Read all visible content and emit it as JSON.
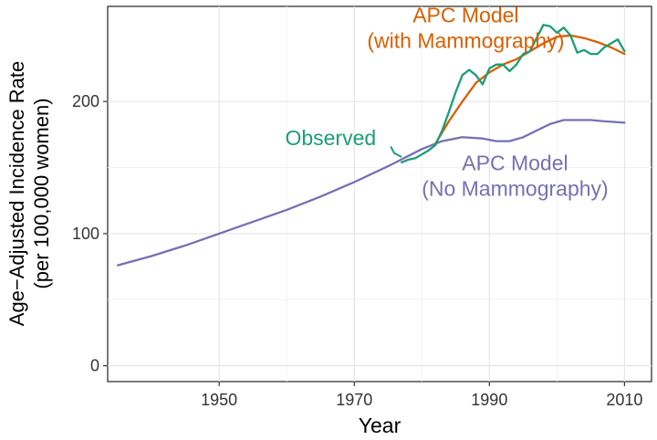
{
  "chart_data": {
    "type": "line",
    "title": "",
    "xlabel": "Year",
    "ylabel": [
      "Age−Adjusted Incidence Rate",
      "(per 100,000 women)"
    ],
    "xlim": [
      1933.5,
      2014
    ],
    "ylim": [
      -12,
      272
    ],
    "x_ticks": [
      1950,
      1970,
      1990,
      2010
    ],
    "y_ticks": [
      0,
      100,
      200
    ],
    "grid": true,
    "legend": "none",
    "series": [
      {
        "key": "no_mammography",
        "name": "APC Model (No Mammography)",
        "color": "#7570b3",
        "x": [
          1935,
          1940,
          1945,
          1950,
          1955,
          1960,
          1965,
          1970,
          1975,
          1980,
          1983,
          1986,
          1989,
          1991,
          1993,
          1995,
          1997,
          1999,
          2001,
          2003,
          2005,
          2007,
          2010
        ],
        "y": [
          76,
          83,
          91,
          100,
          109,
          118,
          128,
          139,
          151,
          164,
          170,
          173,
          172,
          170,
          170,
          173,
          178,
          183,
          186,
          186,
          186,
          185,
          184
        ]
      },
      {
        "key": "with_mammography",
        "name": "APC Model (with Mammography)",
        "color": "#d95f02",
        "x": [
          1982,
          1984,
          1986,
          1988,
          1990,
          1992,
          1994,
          1996,
          1998,
          2000,
          2002,
          2004,
          2006,
          2008,
          2010
        ],
        "y": [
          168,
          185,
          200,
          214,
          222,
          228,
          232,
          238,
          244,
          249,
          250,
          248,
          245,
          241,
          236
        ]
      },
      {
        "key": "observed",
        "name": "Observed",
        "color": "#1b9e77",
        "x": [
          1977,
          1978,
          1979,
          1980,
          1981,
          1982,
          1983,
          1984,
          1985,
          1986,
          1987,
          1988,
          1989,
          1990,
          1991,
          1992,
          1993,
          1994,
          1995,
          1996,
          1997,
          1998,
          1999,
          2000,
          2001,
          2002,
          2003,
          2004,
          2005,
          2006,
          2007,
          2008,
          2009,
          2010
        ],
        "y": [
          154,
          156,
          157,
          160,
          163,
          167,
          178,
          192,
          207,
          220,
          224,
          220,
          213,
          225,
          228,
          228,
          223,
          228,
          236,
          238,
          248,
          258,
          257,
          252,
          256,
          250,
          237,
          239,
          236,
          236,
          241,
          244,
          247,
          238
        ]
      }
    ],
    "annotations": [
      {
        "key": "observed",
        "lines": [
          "Observed"
        ],
        "color": "#1b9e77",
        "x": 1966.5,
        "y": 167,
        "align": "middle"
      },
      {
        "key": "with_mammography",
        "lines": [
          "APC Model",
          "(with Mammography)"
        ],
        "color": "#d95f02",
        "x": 1986.5,
        "y": 260,
        "align": "middle"
      },
      {
        "key": "no_mammography",
        "lines": [
          "APC Model",
          "(No Mammography)"
        ],
        "color": "#7570b3",
        "x": 1993.8,
        "y": 148,
        "align": "middle"
      }
    ],
    "pointer": {
      "color": "#1b9e77",
      "from": [
        1975.4,
        166
      ],
      "mid": [
        1975.9,
        161
      ],
      "to": [
        1977,
        158
      ]
    }
  }
}
